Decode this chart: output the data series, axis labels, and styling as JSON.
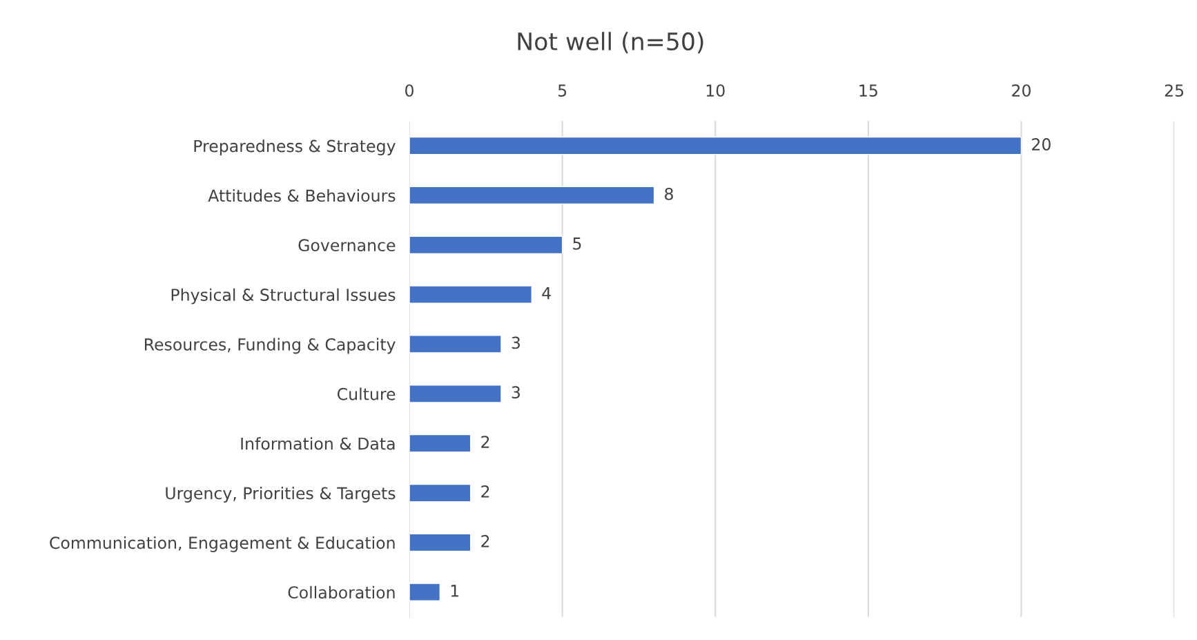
{
  "chart_data": {
    "type": "bar",
    "orientation": "horizontal",
    "title": "Not well (n=50)",
    "categories": [
      "Preparedness & Strategy",
      "Attitudes & Behaviours",
      "Governance",
      "Physical & Structural Issues",
      "Resources, Funding & Capacity",
      "Culture",
      "Information & Data",
      "Urgency, Priorities & Targets",
      "Communication, Engagement & Education",
      "Collaboration"
    ],
    "values": [
      20,
      8,
      5,
      4,
      3,
      3,
      2,
      2,
      2,
      1
    ],
    "color": "#4472c4",
    "xlim": [
      0,
      25
    ],
    "xticks": [
      0,
      5,
      10,
      15,
      20,
      25
    ],
    "grid": "x",
    "data_labels": true,
    "legend": false
  }
}
